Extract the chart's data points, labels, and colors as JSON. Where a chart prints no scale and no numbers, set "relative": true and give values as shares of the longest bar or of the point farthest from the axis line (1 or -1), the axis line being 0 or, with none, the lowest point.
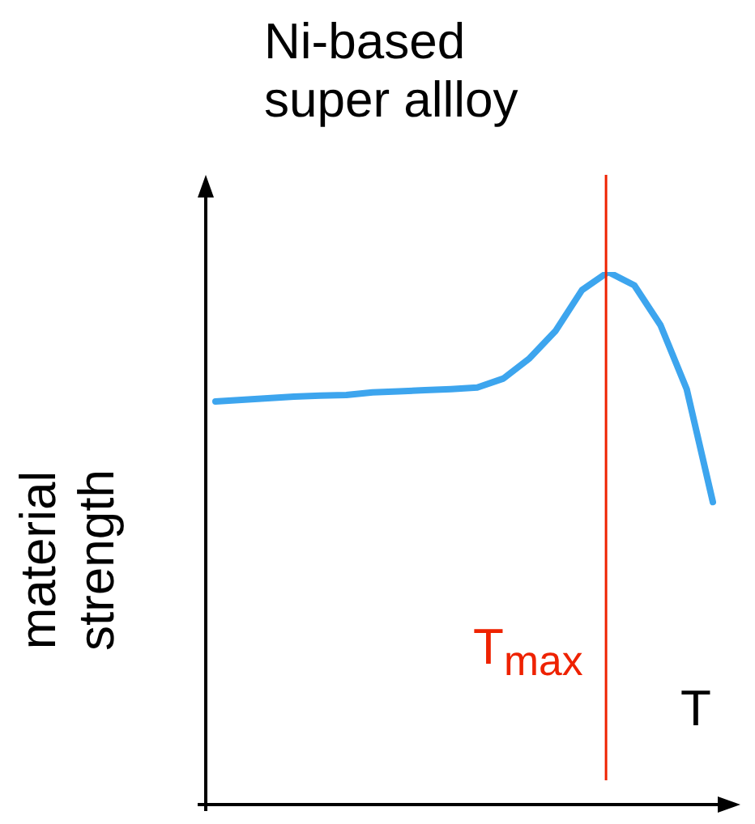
{
  "chart_data": {
    "type": "line",
    "title": "Ni-based\nsuper allloy",
    "ylabel": "material strength",
    "xlabel": "T",
    "relative": true,
    "marker": "none",
    "line_style": "solid",
    "legend": false,
    "tick_labels": false,
    "categories": [
      null,
      null,
      null,
      null,
      null,
      null,
      null,
      null,
      null,
      null,
      null,
      null,
      null,
      null,
      null,
      null,
      null,
      null,
      null,
      null
    ],
    "series": [
      {
        "color": "#3da5ee",
        "values": [
          0.757,
          0.76,
          0.763,
          0.766,
          0.768,
          0.769,
          0.774,
          0.776,
          0.778,
          0.78,
          0.783,
          0.8,
          0.838,
          0.89,
          0.966,
          1,
          0.975,
          0.9,
          0.78,
          0.568
        ]
      }
    ],
    "annotations": [
      "T$_{max}$"
    ]
  }
}
